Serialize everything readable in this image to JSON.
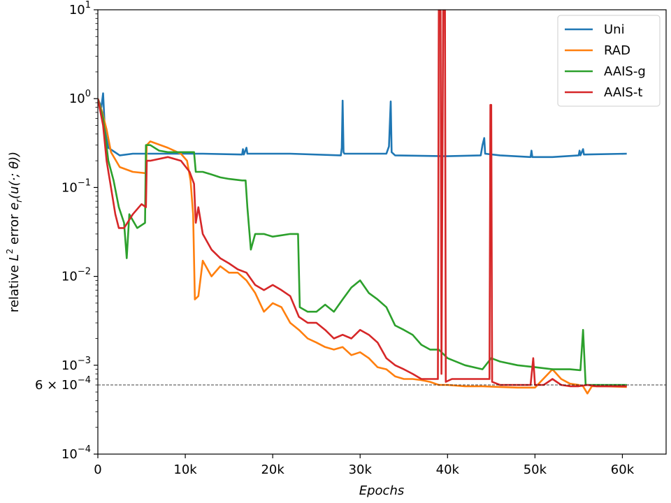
{
  "chart_data": {
    "type": "line",
    "title": "",
    "xlabel": "Epochs",
    "ylabel_prefix": "relative ",
    "ylabel_L": "L",
    "ylabel_sup": "2",
    "ylabel_error": " error ",
    "ylabel_e": "e",
    "ylabel_sub": "r",
    "ylabel_tail": "(u(·; θ))",
    "xlim": [
      0,
      65000
    ],
    "ylim": [
      0.0001,
      10
    ],
    "yscale": "log",
    "x_ticks": [
      0,
      10000,
      20000,
      30000,
      40000,
      50000,
      60000
    ],
    "x_tick_labels": [
      "0",
      "10k",
      "20k",
      "30k",
      "40k",
      "50k",
      "60k"
    ],
    "y_ticks": [
      0.0001,
      0.001,
      0.01,
      0.1,
      1,
      10
    ],
    "y_tick_bases": [
      "10",
      "10",
      "10",
      "10",
      "10",
      "10"
    ],
    "y_tick_exps": [
      "−4",
      "−3",
      "−2",
      "−1",
      "0",
      "1"
    ],
    "reference_line": {
      "value": 0.0006,
      "label_prefix": "6 × 10",
      "label_exp": "−4"
    },
    "legend_position": "top-right",
    "series": [
      {
        "name": "Uni",
        "color": "#1f77b4",
        "points": [
          [
            0,
            1.0
          ],
          [
            400,
            0.8
          ],
          [
            600,
            1.15
          ],
          [
            800,
            0.45
          ],
          [
            1200,
            0.28
          ],
          [
            2500,
            0.23
          ],
          [
            4000,
            0.24
          ],
          [
            8000,
            0.24
          ],
          [
            12000,
            0.24
          ],
          [
            16500,
            0.235
          ],
          [
            16600,
            0.27
          ],
          [
            16700,
            0.235
          ],
          [
            17000,
            0.28
          ],
          [
            17100,
            0.24
          ],
          [
            22000,
            0.24
          ],
          [
            27800,
            0.23
          ],
          [
            27900,
            0.28
          ],
          [
            28000,
            0.95
          ],
          [
            28100,
            0.25
          ],
          [
            28200,
            0.24
          ],
          [
            33000,
            0.24
          ],
          [
            33300,
            0.29
          ],
          [
            33500,
            0.93
          ],
          [
            33600,
            0.25
          ],
          [
            34000,
            0.23
          ],
          [
            40000,
            0.225
          ],
          [
            43800,
            0.23
          ],
          [
            44000,
            0.3
          ],
          [
            44200,
            0.36
          ],
          [
            44300,
            0.24
          ],
          [
            46000,
            0.23
          ],
          [
            49500,
            0.22
          ],
          [
            49600,
            0.26
          ],
          [
            49700,
            0.22
          ],
          [
            52000,
            0.22
          ],
          [
            55000,
            0.23
          ],
          [
            55100,
            0.26
          ],
          [
            55200,
            0.23
          ],
          [
            55500,
            0.27
          ],
          [
            55600,
            0.235
          ],
          [
            60500,
            0.24
          ]
        ]
      },
      {
        "name": "RAD",
        "color": "#ff7f0e",
        "points": [
          [
            0,
            1.0
          ],
          [
            500,
            0.7
          ],
          [
            1000,
            0.45
          ],
          [
            1500,
            0.25
          ],
          [
            2500,
            0.17
          ],
          [
            4000,
            0.15
          ],
          [
            5500,
            0.145
          ],
          [
            5600,
            0.3
          ],
          [
            6000,
            0.33
          ],
          [
            8000,
            0.28
          ],
          [
            9500,
            0.24
          ],
          [
            10200,
            0.2
          ],
          [
            10600,
            0.12
          ],
          [
            10900,
            0.05
          ],
          [
            11100,
            0.0055
          ],
          [
            11500,
            0.006
          ],
          [
            12000,
            0.015
          ],
          [
            13000,
            0.01
          ],
          [
            14000,
            0.013
          ],
          [
            15000,
            0.011
          ],
          [
            16000,
            0.011
          ],
          [
            17000,
            0.009
          ],
          [
            18000,
            0.0065
          ],
          [
            19000,
            0.004
          ],
          [
            20000,
            0.005
          ],
          [
            21000,
            0.0045
          ],
          [
            22000,
            0.003
          ],
          [
            23000,
            0.0025
          ],
          [
            24000,
            0.002
          ],
          [
            25000,
            0.0018
          ],
          [
            26000,
            0.0016
          ],
          [
            27000,
            0.0015
          ],
          [
            28000,
            0.0016
          ],
          [
            29000,
            0.0013
          ],
          [
            30000,
            0.0014
          ],
          [
            31000,
            0.0012
          ],
          [
            32000,
            0.00095
          ],
          [
            33000,
            0.0009
          ],
          [
            34000,
            0.00075
          ],
          [
            35000,
            0.0007
          ],
          [
            36000,
            0.0007
          ],
          [
            37000,
            0.00068
          ],
          [
            38000,
            0.00065
          ],
          [
            39000,
            0.0006
          ],
          [
            40000,
            0.0006
          ],
          [
            42000,
            0.00058
          ],
          [
            44000,
            0.00058
          ],
          [
            46000,
            0.00057
          ],
          [
            48000,
            0.00056
          ],
          [
            50000,
            0.00056
          ],
          [
            52000,
            0.0009
          ],
          [
            53000,
            0.0007
          ],
          [
            54000,
            0.00062
          ],
          [
            55000,
            0.0006
          ],
          [
            55500,
            0.00058
          ],
          [
            56000,
            0.00048
          ],
          [
            56500,
            0.00058
          ],
          [
            58000,
            0.00058
          ],
          [
            60500,
            0.00057
          ]
        ]
      },
      {
        "name": "AAIS-g",
        "color": "#2ca02c",
        "points": [
          [
            0,
            1.0
          ],
          [
            600,
            0.6
          ],
          [
            1200,
            0.2
          ],
          [
            1800,
            0.12
          ],
          [
            2400,
            0.06
          ],
          [
            3000,
            0.04
          ],
          [
            3300,
            0.016
          ],
          [
            3600,
            0.05
          ],
          [
            4500,
            0.035
          ],
          [
            5400,
            0.04
          ],
          [
            5500,
            0.3
          ],
          [
            6000,
            0.3
          ],
          [
            7000,
            0.26
          ],
          [
            8000,
            0.25
          ],
          [
            9000,
            0.25
          ],
          [
            10000,
            0.25
          ],
          [
            11000,
            0.25
          ],
          [
            11200,
            0.15
          ],
          [
            12000,
            0.15
          ],
          [
            13000,
            0.14
          ],
          [
            14000,
            0.13
          ],
          [
            15000,
            0.125
          ],
          [
            16500,
            0.12
          ],
          [
            16900,
            0.12
          ],
          [
            17100,
            0.06
          ],
          [
            17500,
            0.02
          ],
          [
            18000,
            0.03
          ],
          [
            19000,
            0.03
          ],
          [
            20000,
            0.028
          ],
          [
            21000,
            0.029
          ],
          [
            22000,
            0.03
          ],
          [
            22900,
            0.03
          ],
          [
            23100,
            0.0045
          ],
          [
            24000,
            0.004
          ],
          [
            25000,
            0.004
          ],
          [
            26000,
            0.0048
          ],
          [
            27000,
            0.004
          ],
          [
            28000,
            0.0055
          ],
          [
            29000,
            0.0075
          ],
          [
            30000,
            0.009
          ],
          [
            31000,
            0.0065
          ],
          [
            32000,
            0.0055
          ],
          [
            33000,
            0.0045
          ],
          [
            34000,
            0.0028
          ],
          [
            35000,
            0.0025
          ],
          [
            36000,
            0.0022
          ],
          [
            37000,
            0.0017
          ],
          [
            38000,
            0.0015
          ],
          [
            39000,
            0.0015
          ],
          [
            40000,
            0.0012
          ],
          [
            42000,
            0.001
          ],
          [
            44000,
            0.0009
          ],
          [
            45000,
            0.0012
          ],
          [
            46000,
            0.0011
          ],
          [
            48000,
            0.001
          ],
          [
            50000,
            0.00095
          ],
          [
            52000,
            0.0009
          ],
          [
            54000,
            0.0009
          ],
          [
            55200,
            0.00088
          ],
          [
            55500,
            0.0025
          ],
          [
            55800,
            0.0006
          ],
          [
            57000,
            0.0006
          ],
          [
            60500,
            0.0006
          ]
        ]
      },
      {
        "name": "AAIS-t",
        "color": "#d62728",
        "points": [
          [
            0,
            1.0
          ],
          [
            600,
            0.5
          ],
          [
            1000,
            0.2
          ],
          [
            1500,
            0.1
          ],
          [
            2000,
            0.05
          ],
          [
            2400,
            0.035
          ],
          [
            3000,
            0.035
          ],
          [
            4000,
            0.05
          ],
          [
            5000,
            0.065
          ],
          [
            5500,
            0.06
          ],
          [
            5600,
            0.2
          ],
          [
            6000,
            0.2
          ],
          [
            8000,
            0.22
          ],
          [
            9500,
            0.2
          ],
          [
            10500,
            0.15
          ],
          [
            11000,
            0.11
          ],
          [
            11200,
            0.04
          ],
          [
            11500,
            0.06
          ],
          [
            12000,
            0.03
          ],
          [
            13000,
            0.02
          ],
          [
            14000,
            0.016
          ],
          [
            15000,
            0.014
          ],
          [
            16000,
            0.012
          ],
          [
            17000,
            0.011
          ],
          [
            18000,
            0.008
          ],
          [
            19000,
            0.007
          ],
          [
            20000,
            0.008
          ],
          [
            21000,
            0.007
          ],
          [
            22000,
            0.006
          ],
          [
            23000,
            0.0035
          ],
          [
            24000,
            0.003
          ],
          [
            25000,
            0.003
          ],
          [
            26000,
            0.0025
          ],
          [
            27000,
            0.002
          ],
          [
            28000,
            0.0022
          ],
          [
            29000,
            0.002
          ],
          [
            30000,
            0.0025
          ],
          [
            31000,
            0.0022
          ],
          [
            32000,
            0.0018
          ],
          [
            33000,
            0.0012
          ],
          [
            34000,
            0.001
          ],
          [
            35000,
            0.0009
          ],
          [
            36000,
            0.0008
          ],
          [
            37000,
            0.0007
          ],
          [
            38000,
            0.0007
          ],
          [
            38900,
            0.0007
          ],
          [
            39000,
            12
          ],
          [
            39200,
            12
          ],
          [
            39300,
            0.0008
          ],
          [
            39500,
            12
          ],
          [
            39700,
            12
          ],
          [
            39800,
            0.00065
          ],
          [
            40500,
            0.0007
          ],
          [
            42000,
            0.0007
          ],
          [
            44000,
            0.0007
          ],
          [
            44800,
            0.0007
          ],
          [
            44900,
            0.85
          ],
          [
            45000,
            0.85
          ],
          [
            45100,
            0.00065
          ],
          [
            46000,
            0.0006
          ],
          [
            48000,
            0.0006
          ],
          [
            49500,
            0.0006
          ],
          [
            49800,
            0.0012
          ],
          [
            50000,
            0.0006
          ],
          [
            51000,
            0.0006
          ],
          [
            52000,
            0.0007
          ],
          [
            53000,
            0.0006
          ],
          [
            54000,
            0.00058
          ],
          [
            55000,
            0.00058
          ],
          [
            56000,
            0.0006
          ],
          [
            57000,
            0.00058
          ],
          [
            60500,
            0.00058
          ]
        ]
      }
    ]
  }
}
